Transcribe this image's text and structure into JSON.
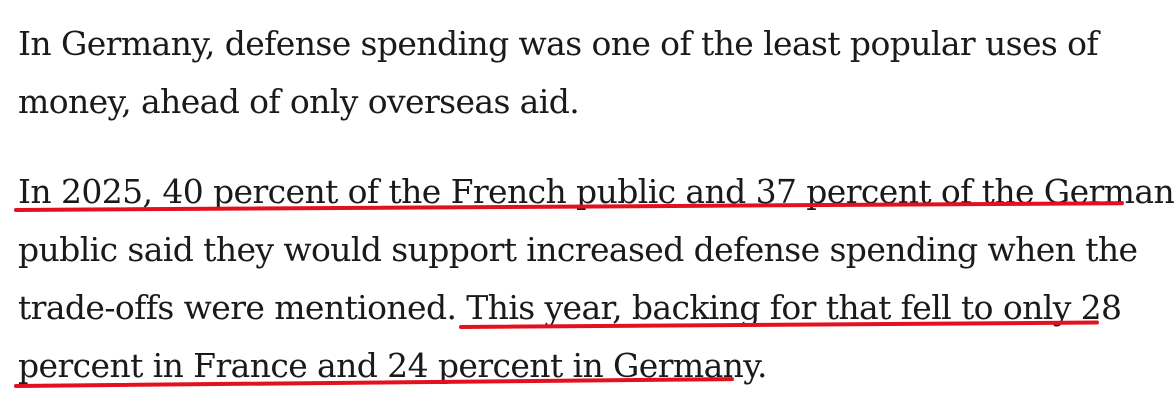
{
  "article": {
    "paragraph1": {
      "lines": [
        "In Germany, defense spending was one of the least popular uses of",
        "money, ahead of only overseas aid."
      ]
    },
    "paragraph2": {
      "line1": "In 2025, 40 percent of the French public and 37 percent of the German",
      "line2": "public said they would support increased defense spending when the",
      "line3_plain": "trade-offs were mentioned. ",
      "line3_highlight": "This year, backing for that fell to only 28",
      "line4": "percent in France and 24 percent in Germany."
    }
  },
  "colors": {
    "text": "#1a1a1a",
    "underline": "#e3101d",
    "background": "#ffffff"
  }
}
